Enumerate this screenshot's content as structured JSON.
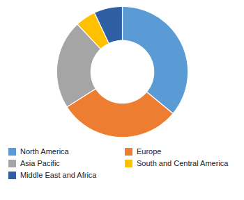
{
  "chart_data": {
    "type": "donut",
    "categories": [
      "North America",
      "Europe",
      "Asia Pacific",
      "South and Central America",
      "Middle East and Africa"
    ],
    "values": [
      36,
      30,
      22,
      5,
      7
    ],
    "colors": [
      "#5B9BD5",
      "#ED7D31",
      "#A5A5A5",
      "#FFC000",
      "#2E5FA3"
    ],
    "legend": "bottom"
  }
}
